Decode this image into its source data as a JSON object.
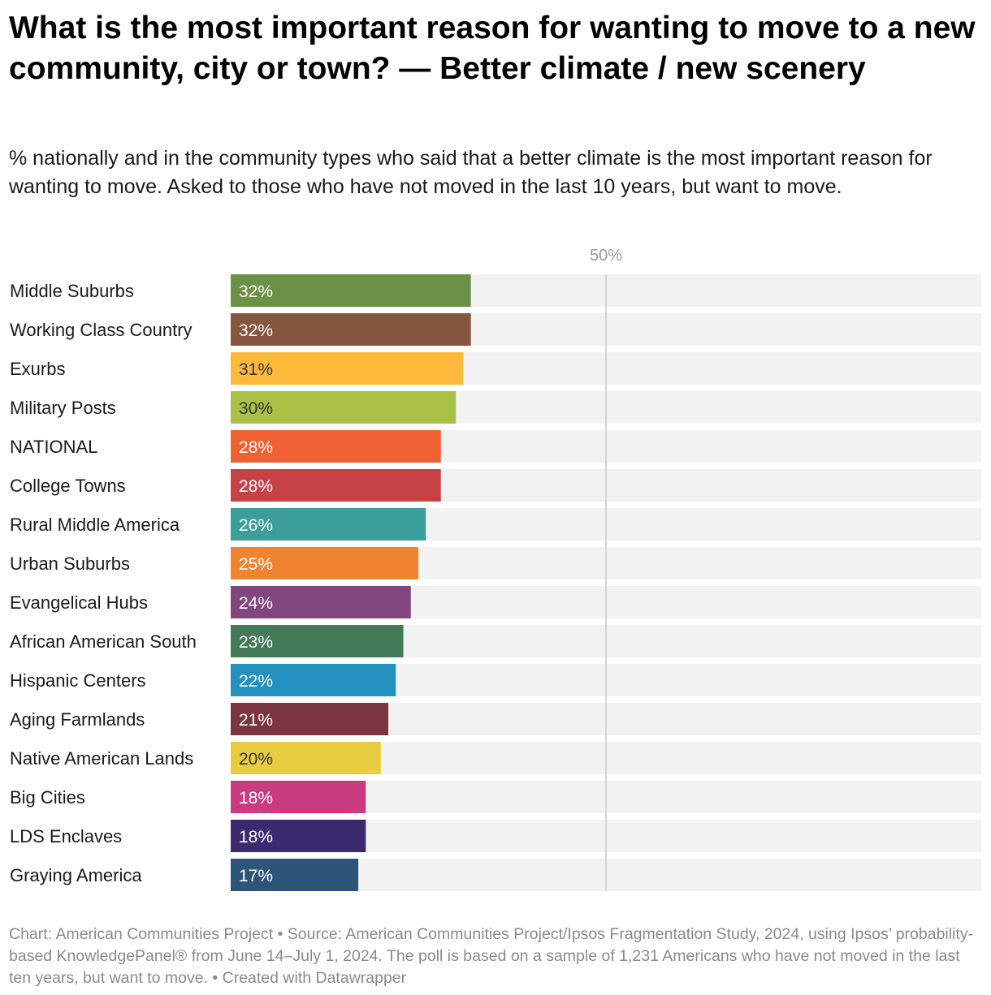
{
  "title": "What is the most important reason for wanting to move to a new community, city or town? — Better climate / new scenery",
  "subtitle": "% nationally and in the community types who said that a better climate is the most important reason for wanting to move. Asked to those who have not moved in the last 10 years, but want to move.",
  "footer": "Chart: American Communities Project • Source: American Communities Project/Ipsos Fragmentation Study, 2024, using Ipsos’ probability-based KnowledgePanel® from June 14–July 1, 2024. The poll is based on a sample of 1,231 Americans who have not moved in the last ten years, but want to move. • Created with Datawrapper",
  "chart_data": {
    "type": "bar",
    "orientation": "horizontal",
    "xlim": [
      0,
      100
    ],
    "reference_line": {
      "value": 50,
      "label": "50%"
    },
    "grid": false,
    "value_suffix": "%",
    "bars": [
      {
        "category": "Middle Suburbs",
        "value": 32,
        "color": "#6a9145",
        "label_color": "#ffffff"
      },
      {
        "category": "Working Class Country",
        "value": 32,
        "color": "#87563e",
        "label_color": "#ffffff"
      },
      {
        "category": "Exurbs",
        "value": 31,
        "color": "#fdb93a",
        "label_color": "#333333"
      },
      {
        "category": "Military Posts",
        "value": 30,
        "color": "#a9bf46",
        "label_color": "#333333"
      },
      {
        "category": "NATIONAL",
        "value": 28,
        "color": "#ef6033",
        "label_color": "#ffffff"
      },
      {
        "category": "College Towns",
        "value": 28,
        "color": "#c64244",
        "label_color": "#ffffff"
      },
      {
        "category": "Rural Middle America",
        "value": 26,
        "color": "#3b9e9b",
        "label_color": "#ffffff"
      },
      {
        "category": "Urban Suburbs",
        "value": 25,
        "color": "#f08430",
        "label_color": "#ffffff"
      },
      {
        "category": "Evangelical Hubs",
        "value": 24,
        "color": "#82467e",
        "label_color": "#ffffff"
      },
      {
        "category": "African American South",
        "value": 23,
        "color": "#437a58",
        "label_color": "#ffffff"
      },
      {
        "category": "Hispanic Centers",
        "value": 22,
        "color": "#2490bf",
        "label_color": "#ffffff"
      },
      {
        "category": "Aging Farmlands",
        "value": 21,
        "color": "#7a3541",
        "label_color": "#ffffff"
      },
      {
        "category": "Native American Lands",
        "value": 20,
        "color": "#e9cd40",
        "label_color": "#333333"
      },
      {
        "category": "Big Cities",
        "value": 18,
        "color": "#c93c82",
        "label_color": "#ffffff"
      },
      {
        "category": "LDS Enclaves",
        "value": 18,
        "color": "#3b2b6e",
        "label_color": "#ffffff"
      },
      {
        "category": "Graying America",
        "value": 17,
        "color": "#2d5479",
        "label_color": "#ffffff"
      }
    ]
  }
}
